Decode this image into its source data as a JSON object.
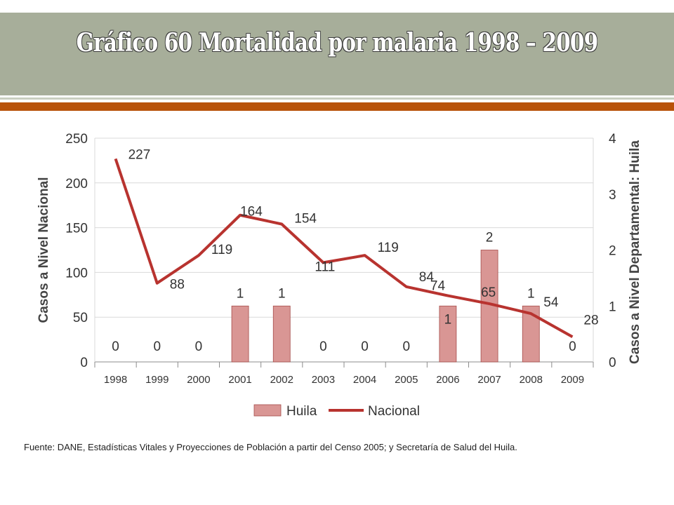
{
  "title": "Gráfico 60 Mortalidad por malaria 1998 – 2009",
  "source": "Fuente: DANE, Estadísticas Vitales y Proyecciones de Población a partir del Censo 2005; y Secretaría de Salud del Huila.",
  "colors": {
    "bar": "#d99694",
    "bar_border": "#a64d4a",
    "line": "#b8332f",
    "header": "#a7ae9a",
    "accent": "#b8520a"
  },
  "chart_data": {
    "type": "bar+line",
    "categories": [
      "1998",
      "1999",
      "2000",
      "2001",
      "2002",
      "2003",
      "2004",
      "2005",
      "2006",
      "2007",
      "2008",
      "2009"
    ],
    "series": [
      {
        "name": "Huila",
        "type": "bar",
        "axis": "right",
        "values": [
          0,
          0,
          0,
          1,
          1,
          0,
          0,
          0,
          1,
          2,
          1,
          0
        ]
      },
      {
        "name": "Nacional",
        "type": "line",
        "axis": "left",
        "values": [
          227,
          88,
          119,
          164,
          154,
          111,
          119,
          84,
          74,
          65,
          54,
          28
        ]
      }
    ],
    "ylabel": "Casos a Nivel Nacional",
    "y2label": "Casos a Nivel Departamental: Huila",
    "ylim": [
      0,
      250
    ],
    "yticks": [
      "0",
      "50",
      "100",
      "150",
      "200",
      "250"
    ],
    "y2lim": [
      0,
      4
    ],
    "y2ticks": [
      "0",
      "1",
      "2",
      "3",
      "4"
    ],
    "grid": true,
    "legend": {
      "position": "bottom",
      "items": [
        "Huila",
        "Nacional"
      ]
    }
  }
}
